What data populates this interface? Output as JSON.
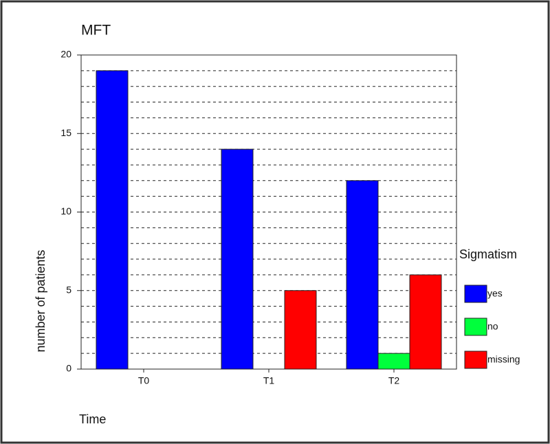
{
  "chart_data": {
    "type": "bar",
    "title": "MFT",
    "x_label": "Time",
    "y_label": "number of patients",
    "categories": [
      "T0",
      "T1",
      "T2"
    ],
    "series": [
      {
        "name": "yes",
        "color": "#0000ff",
        "values": [
          19,
          14,
          12
        ]
      },
      {
        "name": "no",
        "color": "#00ff3c",
        "values": [
          0,
          0,
          1
        ]
      },
      {
        "name": "missing",
        "color": "#ff0000",
        "values": [
          0,
          5,
          6
        ]
      }
    ],
    "legend_title": "Sigmatism",
    "legend": "right",
    "ylim": [
      0,
      20
    ],
    "yticks": [
      0,
      5,
      10,
      15,
      20
    ],
    "grid": true
  }
}
